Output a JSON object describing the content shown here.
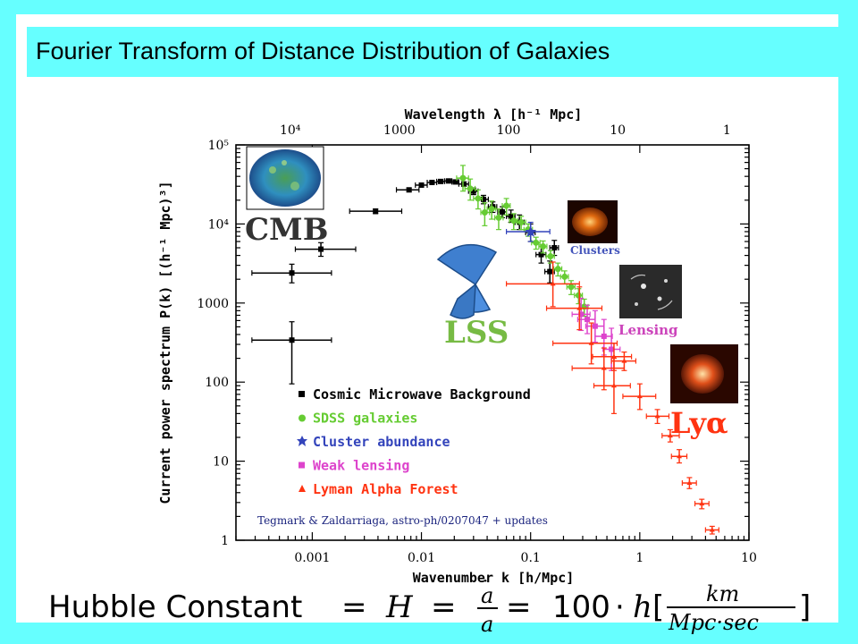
{
  "title": "Fourier Transform of Distance Distribution of Galaxies",
  "chart_data": {
    "type": "scatter",
    "xscale": "log",
    "yscale": "log",
    "xlim": [
      0.0002,
      10
    ],
    "ylim": [
      1,
      100000
    ],
    "xlabel": "Wavenumber k [h/Mpc]",
    "ylabel": "Current power spectrum P(k) [(h⁻¹ Mpc)³]",
    "top_axis_label": "Wavelength λ [h⁻¹ Mpc]",
    "x_ticks": [
      {
        "value": 0.001,
        "label": "0.001"
      },
      {
        "value": 0.01,
        "label": "0.01"
      },
      {
        "value": 0.1,
        "label": "0.1"
      },
      {
        "value": 1,
        "label": "1"
      },
      {
        "value": 10,
        "label": "10"
      }
    ],
    "y_ticks": [
      {
        "value": 1,
        "label": "1"
      },
      {
        "value": 10,
        "label": "10"
      },
      {
        "value": 100,
        "label": "100"
      },
      {
        "value": 1000,
        "label": "1000"
      },
      {
        "value": 10000,
        "label": "10⁴"
      },
      {
        "value": 100000,
        "label": "10⁵"
      }
    ],
    "top_ticks": [
      {
        "k": 0.000628,
        "label": "10⁴"
      },
      {
        "k": 0.00628,
        "label": "1000"
      },
      {
        "k": 0.0628,
        "label": "100"
      },
      {
        "k": 0.628,
        "label": "10"
      },
      {
        "k": 6.28,
        "label": "1"
      }
    ],
    "series": [
      {
        "name": "Cosmic Microwave Background",
        "color": "#000000",
        "marker": "square",
        "points": [
          {
            "x": 0.00065,
            "y": 340,
            "xlo": 0.00028,
            "xhi": 0.0015,
            "ylo": 95,
            "yhi": 580
          },
          {
            "x": 0.00065,
            "y": 2400,
            "xlo": 0.00028,
            "xhi": 0.0015,
            "ylo": 1800,
            "yhi": 3100
          },
          {
            "x": 0.0012,
            "y": 4800,
            "xlo": 0.0007,
            "xhi": 0.0025,
            "ylo": 3900,
            "yhi": 5800
          },
          {
            "x": 0.0038,
            "y": 14500,
            "xlo": 0.0022,
            "xhi": 0.0066,
            "ylo": 13500,
            "yhi": 15500
          },
          {
            "x": 0.0077,
            "y": 27000,
            "xlo": 0.0059,
            "xhi": 0.0095,
            "ylo": 25500,
            "yhi": 28500
          },
          {
            "x": 0.01,
            "y": 31000,
            "xlo": 0.0088,
            "xhi": 0.0113,
            "ylo": 29500,
            "yhi": 32500
          },
          {
            "x": 0.0125,
            "y": 33500,
            "xlo": 0.0113,
            "xhi": 0.0138,
            "ylo": 32000,
            "yhi": 35000
          },
          {
            "x": 0.015,
            "y": 34500,
            "xlo": 0.0138,
            "xhi": 0.0163,
            "ylo": 33000,
            "yhi": 36000
          },
          {
            "x": 0.0177,
            "y": 35000,
            "xlo": 0.0163,
            "xhi": 0.019,
            "ylo": 33500,
            "yhi": 36500
          },
          {
            "x": 0.0205,
            "y": 34000,
            "xlo": 0.019,
            "xhi": 0.022,
            "ylo": 32500,
            "yhi": 35500
          },
          {
            "x": 0.0245,
            "y": 32000,
            "xlo": 0.022,
            "xhi": 0.027,
            "ylo": 30000,
            "yhi": 34000
          },
          {
            "x": 0.03,
            "y": 26000,
            "xlo": 0.027,
            "xhi": 0.033,
            "ylo": 23500,
            "yhi": 28500
          },
          {
            "x": 0.037,
            "y": 20500,
            "xlo": 0.033,
            "xhi": 0.041,
            "ylo": 18000,
            "yhi": 23000
          },
          {
            "x": 0.045,
            "y": 16500,
            "xlo": 0.041,
            "xhi": 0.049,
            "ylo": 14000,
            "yhi": 19000
          },
          {
            "x": 0.055,
            "y": 14200,
            "xlo": 0.05,
            "xhi": 0.06,
            "ylo": 12000,
            "yhi": 16500
          },
          {
            "x": 0.066,
            "y": 12500,
            "xlo": 0.06,
            "xhi": 0.072,
            "ylo": 10500,
            "yhi": 15000
          },
          {
            "x": 0.079,
            "y": 10500,
            "xlo": 0.072,
            "xhi": 0.087,
            "ylo": 8500,
            "yhi": 13000
          },
          {
            "x": 0.1,
            "y": 7800,
            "xlo": 0.09,
            "xhi": 0.11,
            "ylo": 6000,
            "yhi": 10000
          },
          {
            "x": 0.125,
            "y": 4100,
            "xlo": 0.112,
            "xhi": 0.138,
            "ylo": 3200,
            "yhi": 5200
          },
          {
            "x": 0.15,
            "y": 2500,
            "xlo": 0.135,
            "xhi": 0.165,
            "ylo": 1800,
            "yhi": 3400
          },
          {
            "x": 0.165,
            "y": 5000,
            "xlo": 0.15,
            "xhi": 0.18,
            "ylo": 4000,
            "yhi": 6200
          }
        ]
      },
      {
        "name": "SDSS galaxies",
        "color": "#66cc33",
        "marker": "circle",
        "points": [
          {
            "x": 0.024,
            "y": 38000,
            "xlo": 0.021,
            "xhi": 0.027,
            "ylo": 26000,
            "yhi": 55000
          },
          {
            "x": 0.028,
            "y": 28000,
            "xlo": 0.025,
            "xhi": 0.031,
            "ylo": 20000,
            "yhi": 37000
          },
          {
            "x": 0.033,
            "y": 21000,
            "xlo": 0.03,
            "xhi": 0.036,
            "ylo": 15500,
            "yhi": 27000
          },
          {
            "x": 0.038,
            "y": 14000,
            "xlo": 0.035,
            "xhi": 0.042,
            "ylo": 9500,
            "yhi": 18500
          },
          {
            "x": 0.044,
            "y": 15500,
            "xlo": 0.04,
            "xhi": 0.048,
            "ylo": 11500,
            "yhi": 19500
          },
          {
            "x": 0.051,
            "y": 12000,
            "xlo": 0.047,
            "xhi": 0.056,
            "ylo": 8500,
            "yhi": 15500
          },
          {
            "x": 0.06,
            "y": 17000,
            "xlo": 0.055,
            "xhi": 0.065,
            "ylo": 13000,
            "yhi": 21000
          },
          {
            "x": 0.07,
            "y": 11000,
            "xlo": 0.064,
            "xhi": 0.076,
            "ylo": 8500,
            "yhi": 13500
          },
          {
            "x": 0.082,
            "y": 10500,
            "xlo": 0.075,
            "xhi": 0.09,
            "ylo": 8500,
            "yhi": 12500
          },
          {
            "x": 0.095,
            "y": 8500,
            "xlo": 0.087,
            "xhi": 0.104,
            "ylo": 7000,
            "yhi": 10000
          },
          {
            "x": 0.112,
            "y": 5800,
            "xlo": 0.102,
            "xhi": 0.122,
            "ylo": 4800,
            "yhi": 6800
          },
          {
            "x": 0.13,
            "y": 5200,
            "xlo": 0.119,
            "xhi": 0.141,
            "ylo": 4300,
            "yhi": 6100
          },
          {
            "x": 0.152,
            "y": 3900,
            "xlo": 0.139,
            "xhi": 0.165,
            "ylo": 3200,
            "yhi": 4600
          },
          {
            "x": 0.178,
            "y": 2700,
            "xlo": 0.163,
            "xhi": 0.193,
            "ylo": 2200,
            "yhi": 3200
          },
          {
            "x": 0.205,
            "y": 2150,
            "xlo": 0.188,
            "xhi": 0.222,
            "ylo": 1750,
            "yhi": 2550
          },
          {
            "x": 0.235,
            "y": 1600,
            "xlo": 0.215,
            "xhi": 0.255,
            "ylo": 1280,
            "yhi": 1920
          },
          {
            "x": 0.275,
            "y": 1250,
            "xlo": 0.252,
            "xhi": 0.298,
            "ylo": 980,
            "yhi": 1520
          },
          {
            "x": 0.31,
            "y": 900,
            "xlo": 0.284,
            "xhi": 0.336,
            "ylo": 680,
            "yhi": 1120
          }
        ]
      },
      {
        "name": "Cluster abundance",
        "color": "#3344bb",
        "marker": "star",
        "points": [
          {
            "x": 0.1,
            "y": 8000,
            "xlo": 0.06,
            "xhi": 0.15,
            "ylo": 6000,
            "yhi": 10500
          }
        ]
      },
      {
        "name": "Weak lensing",
        "color": "#dd44cc",
        "marker": "square",
        "points": [
          {
            "x": 0.29,
            "y": 720,
            "xlo": 0.24,
            "xhi": 0.35,
            "ylo": 450,
            "yhi": 1150
          },
          {
            "x": 0.33,
            "y": 620,
            "xlo": 0.27,
            "xhi": 0.39,
            "ylo": 410,
            "yhi": 940
          },
          {
            "x": 0.39,
            "y": 510,
            "xlo": 0.32,
            "xhi": 0.47,
            "ylo": 320,
            "yhi": 800
          },
          {
            "x": 0.47,
            "y": 380,
            "xlo": 0.39,
            "xhi": 0.56,
            "ylo": 220,
            "yhi": 620
          },
          {
            "x": 0.55,
            "y": 260,
            "xlo": 0.46,
            "xhi": 0.66,
            "ylo": 140,
            "yhi": 480
          }
        ]
      },
      {
        "name": "Lyman Alpha Forest",
        "color": "#ff3311",
        "marker": "triangle",
        "points": [
          {
            "x": 0.16,
            "y": 1750,
            "xlo": 0.06,
            "xhi": 0.28,
            "ylo": 900,
            "yhi": 3300
          },
          {
            "x": 0.28,
            "y": 860,
            "xlo": 0.14,
            "xhi": 0.45,
            "ylo": 460,
            "yhi": 1600
          },
          {
            "x": 0.36,
            "y": 310,
            "xlo": 0.16,
            "xhi": 0.62,
            "ylo": 170,
            "yhi": 560
          },
          {
            "x": 0.47,
            "y": 150,
            "xlo": 0.24,
            "xhi": 0.72,
            "ylo": 80,
            "yhi": 270
          },
          {
            "x": 0.58,
            "y": 210,
            "xlo": 0.37,
            "xhi": 0.84,
            "ylo": 140,
            "yhi": 310
          },
          {
            "x": 0.72,
            "y": 185,
            "xlo": 0.55,
            "xhi": 0.92,
            "ylo": 140,
            "yhi": 240
          },
          {
            "x": 0.58,
            "y": 90,
            "xlo": 0.38,
            "xhi": 0.82,
            "ylo": 40,
            "yhi": 200
          },
          {
            "x": 1.0,
            "y": 66,
            "xlo": 0.7,
            "xhi": 1.4,
            "ylo": 45,
            "yhi": 95
          },
          {
            "x": 1.45,
            "y": 37,
            "xlo": 1.15,
            "xhi": 1.85,
            "ylo": 30,
            "yhi": 45
          },
          {
            "x": 1.9,
            "y": 21,
            "xlo": 1.6,
            "xhi": 2.3,
            "ylo": 17.5,
            "yhi": 25
          },
          {
            "x": 2.3,
            "y": 11.5,
            "xlo": 1.95,
            "xhi": 2.7,
            "ylo": 9.5,
            "yhi": 14
          },
          {
            "x": 2.85,
            "y": 5.3,
            "xlo": 2.45,
            "xhi": 3.3,
            "ylo": 4.5,
            "yhi": 6.2
          },
          {
            "x": 3.7,
            "y": 2.9,
            "xlo": 3.2,
            "xhi": 4.3,
            "ylo": 2.5,
            "yhi": 3.3
          },
          {
            "x": 4.6,
            "y": 1.35,
            "xlo": 4.0,
            "xhi": 5.3,
            "ylo": 1.2,
            "yhi": 1.5
          }
        ]
      }
    ],
    "annotations": {
      "cmb": "CMB",
      "lss": "LSS",
      "clusters": "Clusters",
      "lensing": "Lensing",
      "lya": "Lyα"
    },
    "credit": "Tegmark & Zaldarriaga, astro-ph/0207047 + updates"
  },
  "formula": {
    "text": "Hubble Constant",
    "eq": "=",
    "h_var": "H",
    "adot": "a",
    "dot_mark": "·",
    "a_den": "a",
    "hundred": "100",
    "cdot": "·",
    "h_small": "h",
    "lbracket": "[",
    "unit_num": "km",
    "unit_den": "Mpc·sec",
    "rbracket": "]"
  }
}
